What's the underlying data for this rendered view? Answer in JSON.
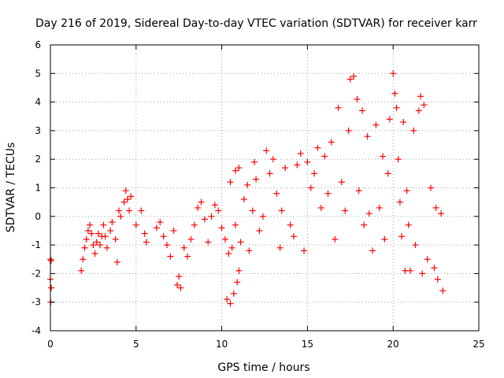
{
  "chart_data": {
    "type": "scatter",
    "title": "Day 216 of 2019, Sidereal Day-to-day VTEC variation (SDTVAR) for receiver karr",
    "xlabel": "GPS time / hours",
    "ylabel": "SDTVAR / TECUs",
    "xlim": [
      0,
      25
    ],
    "ylim": [
      -4,
      6
    ],
    "x_ticks": [
      "0",
      "5",
      "10",
      "15",
      "20",
      "25"
    ],
    "y_ticks": [
      "-4",
      "-3",
      "-2",
      "-1",
      "0",
      "1",
      "2",
      "3",
      "4",
      "5",
      "6"
    ],
    "grid": true,
    "marker": "+",
    "color": "#ff0000",
    "series": [
      {
        "name": "SDTVAR",
        "points": [
          [
            0.0,
            -1.5
          ],
          [
            0.05,
            -1.55
          ],
          [
            0.0,
            -2.2
          ],
          [
            0.05,
            -2.5
          ],
          [
            0.02,
            -3.0
          ],
          [
            1.8,
            -1.9
          ],
          [
            1.9,
            -1.5
          ],
          [
            2.0,
            -1.1
          ],
          [
            2.1,
            -0.8
          ],
          [
            2.2,
            -0.5
          ],
          [
            2.3,
            -0.3
          ],
          [
            2.4,
            -0.6
          ],
          [
            2.5,
            -1.0
          ],
          [
            2.6,
            -1.3
          ],
          [
            2.7,
            -0.9
          ],
          [
            2.8,
            -0.6
          ],
          [
            2.9,
            -1.0
          ],
          [
            3.0,
            -0.7
          ],
          [
            3.1,
            -0.3
          ],
          [
            3.2,
            -0.7
          ],
          [
            3.3,
            -1.1
          ],
          [
            3.5,
            -0.5
          ],
          [
            3.6,
            -0.2
          ],
          [
            3.8,
            -0.8
          ],
          [
            3.9,
            -1.6
          ],
          [
            4.0,
            0.2
          ],
          [
            4.1,
            0.0
          ],
          [
            4.3,
            0.5
          ],
          [
            4.4,
            0.9
          ],
          [
            4.5,
            0.6
          ],
          [
            4.6,
            0.2
          ],
          [
            4.7,
            0.7
          ],
          [
            5.0,
            -0.3
          ],
          [
            5.3,
            0.2
          ],
          [
            5.5,
            -0.6
          ],
          [
            5.6,
            -0.9
          ],
          [
            6.2,
            -0.4
          ],
          [
            6.4,
            -0.2
          ],
          [
            6.6,
            -0.7
          ],
          [
            6.8,
            -1.0
          ],
          [
            7.0,
            -1.4
          ],
          [
            7.2,
            -0.5
          ],
          [
            7.4,
            -2.4
          ],
          [
            7.5,
            -2.1
          ],
          [
            7.6,
            -2.5
          ],
          [
            7.8,
            -1.1
          ],
          [
            8.0,
            -1.4
          ],
          [
            8.2,
            -0.8
          ],
          [
            8.4,
            -0.3
          ],
          [
            8.6,
            0.3
          ],
          [
            8.8,
            0.5
          ],
          [
            9.0,
            -0.1
          ],
          [
            9.2,
            -0.9
          ],
          [
            9.4,
            0.0
          ],
          [
            9.6,
            0.4
          ],
          [
            9.8,
            0.2
          ],
          [
            10.0,
            -0.4
          ],
          [
            10.2,
            -0.8
          ],
          [
            10.3,
            -2.9
          ],
          [
            10.5,
            -3.05
          ],
          [
            10.7,
            -2.7
          ],
          [
            10.9,
            -2.3
          ],
          [
            11.0,
            -1.9
          ],
          [
            10.4,
            -1.3
          ],
          [
            10.6,
            -1.1
          ],
          [
            10.8,
            -0.3
          ],
          [
            11.1,
            -0.9
          ],
          [
            10.5,
            1.2
          ],
          [
            10.8,
            1.6
          ],
          [
            11.0,
            1.7
          ],
          [
            11.3,
            0.6
          ],
          [
            11.5,
            1.1
          ],
          [
            11.6,
            -1.2
          ],
          [
            11.8,
            0.2
          ],
          [
            11.9,
            1.9
          ],
          [
            12.0,
            1.3
          ],
          [
            12.2,
            -0.5
          ],
          [
            12.4,
            0.0
          ],
          [
            12.6,
            2.3
          ],
          [
            12.8,
            1.5
          ],
          [
            13.0,
            2.0
          ],
          [
            13.2,
            0.8
          ],
          [
            13.4,
            -1.1
          ],
          [
            13.5,
            0.2
          ],
          [
            13.7,
            1.7
          ],
          [
            14.0,
            -0.3
          ],
          [
            14.2,
            -0.7
          ],
          [
            14.4,
            1.8
          ],
          [
            14.6,
            2.2
          ],
          [
            14.8,
            -1.2
          ],
          [
            15.0,
            1.9
          ],
          [
            15.2,
            1.0
          ],
          [
            15.4,
            1.5
          ],
          [
            15.6,
            2.4
          ],
          [
            15.8,
            0.3
          ],
          [
            16.0,
            2.1
          ],
          [
            16.2,
            0.8
          ],
          [
            16.4,
            2.6
          ],
          [
            16.6,
            -0.8
          ],
          [
            16.8,
            3.8
          ],
          [
            17.0,
            1.2
          ],
          [
            17.2,
            0.2
          ],
          [
            17.4,
            3.0
          ],
          [
            17.5,
            4.8
          ],
          [
            17.7,
            4.9
          ],
          [
            17.9,
            4.1
          ],
          [
            18.0,
            0.9
          ],
          [
            18.2,
            3.7
          ],
          [
            18.3,
            -0.3
          ],
          [
            18.5,
            2.8
          ],
          [
            18.6,
            0.1
          ],
          [
            18.8,
            -1.2
          ],
          [
            19.0,
            3.2
          ],
          [
            19.2,
            0.3
          ],
          [
            19.4,
            2.1
          ],
          [
            19.5,
            -0.8
          ],
          [
            19.7,
            1.5
          ],
          [
            19.8,
            3.4
          ],
          [
            20.0,
            5.0
          ],
          [
            20.1,
            4.3
          ],
          [
            20.2,
            3.8
          ],
          [
            20.3,
            2.0
          ],
          [
            20.4,
            0.5
          ],
          [
            20.5,
            -0.7
          ],
          [
            20.6,
            3.3
          ],
          [
            20.7,
            -1.9
          ],
          [
            20.8,
            0.9
          ],
          [
            20.9,
            -0.3
          ],
          [
            21.0,
            -1.9
          ],
          [
            21.2,
            3.0
          ],
          [
            21.3,
            -1.0
          ],
          [
            21.5,
            3.7
          ],
          [
            21.6,
            4.2
          ],
          [
            21.7,
            -2.0
          ],
          [
            21.8,
            3.9
          ],
          [
            22.0,
            -1.5
          ],
          [
            22.2,
            1.0
          ],
          [
            22.4,
            -1.8
          ],
          [
            22.5,
            0.3
          ],
          [
            22.6,
            -2.2
          ],
          [
            22.8,
            0.1
          ],
          [
            22.9,
            -2.6
          ]
        ]
      }
    ]
  }
}
